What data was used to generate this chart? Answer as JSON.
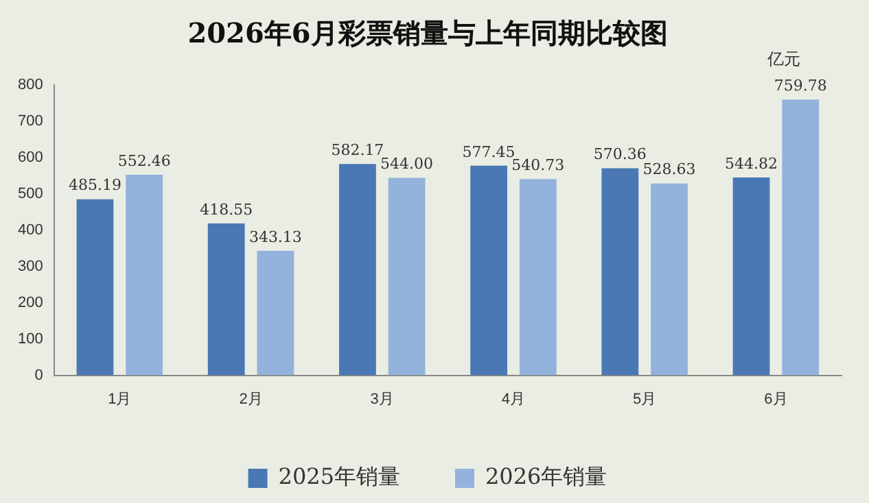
{
  "chart_data": {
    "type": "bar",
    "title": "2026年6月彩票销量与上年同期比较图",
    "annotations": [
      "亿元"
    ],
    "categories": [
      "1月",
      "2月",
      "3月",
      "4月",
      "5月",
      "6月"
    ],
    "series": [
      {
        "name": "2025年销量",
        "color": "#4a78b5",
        "values": [
          485.19,
          418.55,
          582.17,
          577.45,
          570.36,
          544.82
        ],
        "value_labels": [
          "485.19",
          "418.55",
          "582.17",
          "577.45",
          "570.36",
          "544.82"
        ]
      },
      {
        "name": "2026年销量",
        "color": "#93b3dc",
        "values": [
          552.46,
          343.13,
          544.0,
          540.73,
          528.63,
          759.78
        ],
        "value_labels": [
          "552.46",
          "343.13",
          "544.00",
          "540.73",
          "528.63",
          "759.78"
        ]
      }
    ],
    "ylim": [
      0,
      800
    ],
    "yticks": [
      0,
      100,
      200,
      300,
      400,
      500,
      600,
      700,
      800
    ],
    "grid": false,
    "legend": "bottom"
  }
}
